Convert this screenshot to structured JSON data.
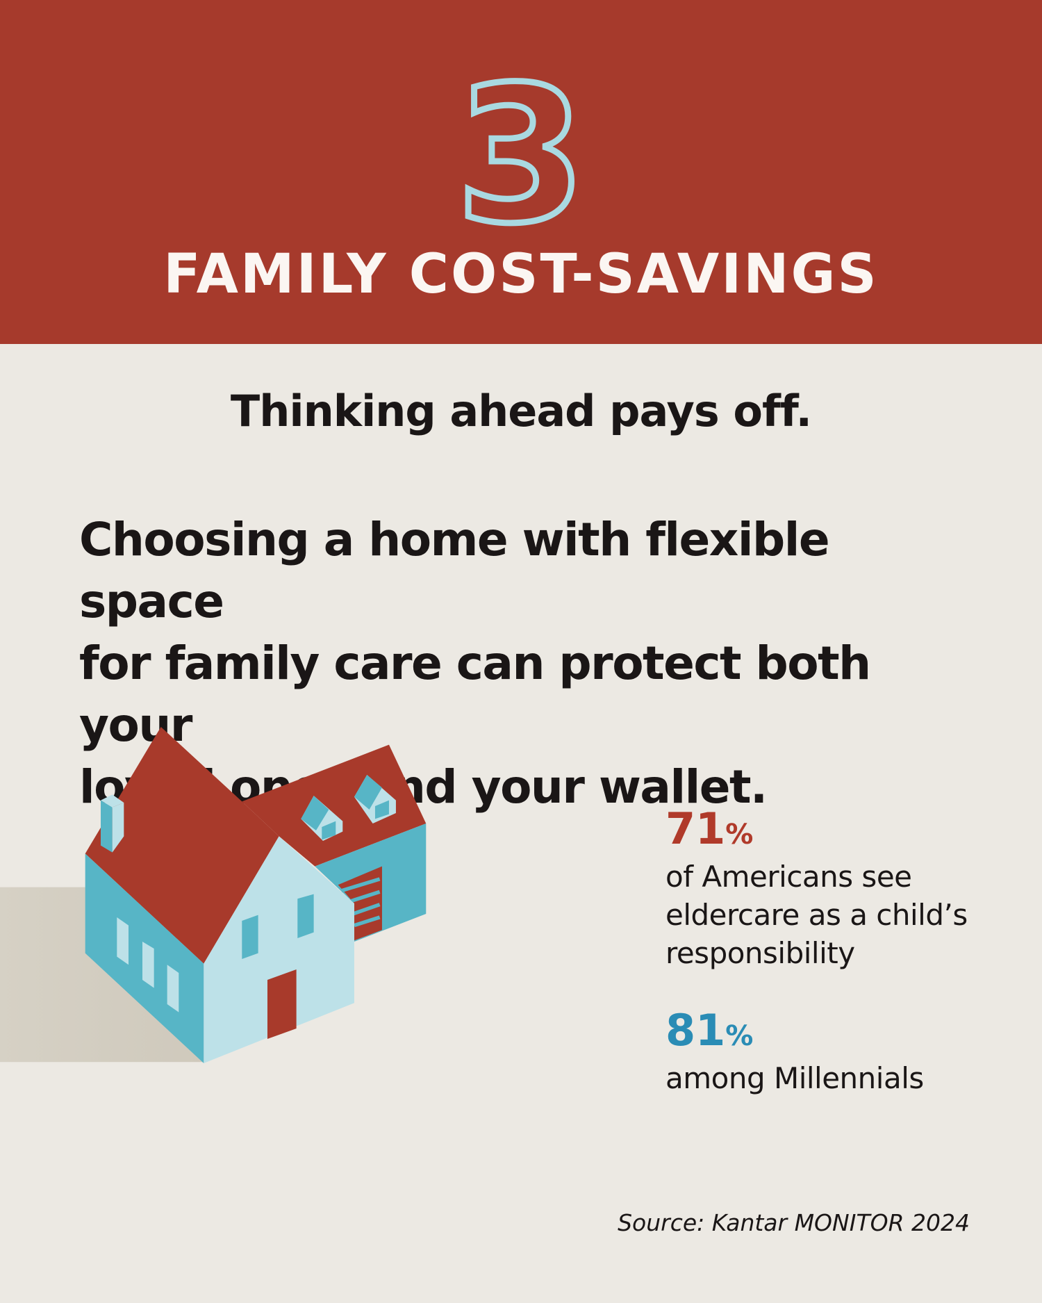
{
  "header": {
    "number": "3",
    "title": "FAMILY COST-SAVINGS"
  },
  "tagline": "Thinking ahead pays off.",
  "body_lines": [
    "Choosing a home with flexible space",
    "for family care can protect both your",
    "loved ones and your wallet."
  ],
  "illustration": "house-icon",
  "stats": [
    {
      "value": "71",
      "unit": "%",
      "color": "#b03a2a",
      "desc_lines": [
        "of Americans see",
        "eldercare as a child’s",
        "responsibility"
      ]
    },
    {
      "value": "81",
      "unit": "%",
      "color": "#2a8cb5",
      "desc_lines": [
        "among Millennials"
      ]
    }
  ],
  "source": "Source: Kantar MONITOR 2024",
  "colors": {
    "header": "#a63a2c",
    "background": "#ece9e3",
    "number_outline": "#a9d9e1",
    "roof": "#a83a2b",
    "wall_dark": "#57b5c6",
    "wall_light": "#bde1e8"
  }
}
